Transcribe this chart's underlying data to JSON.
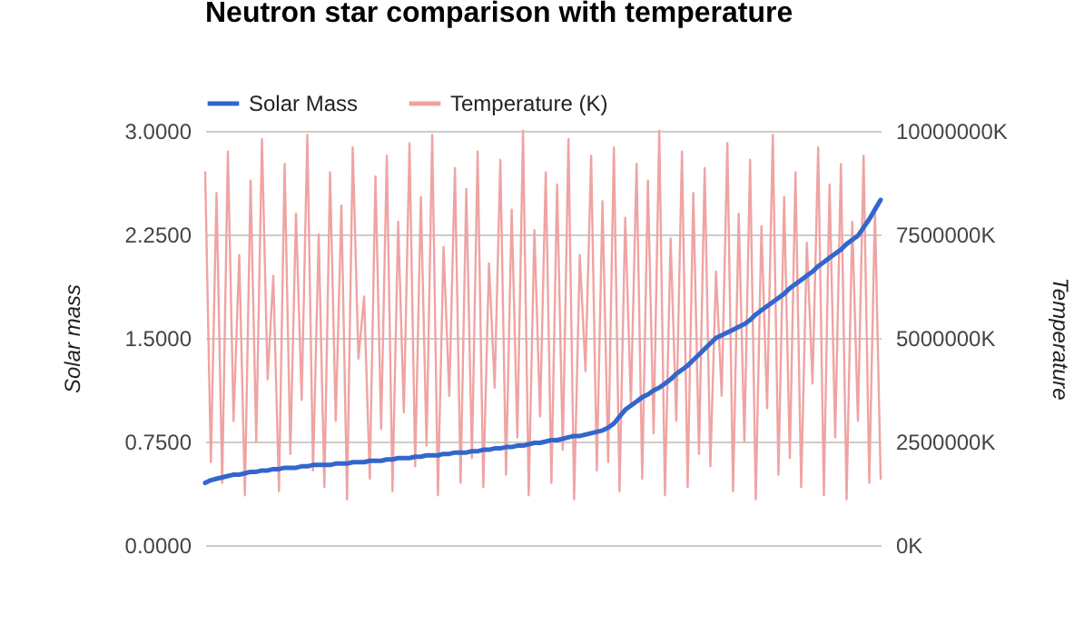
{
  "chart_data": {
    "type": "line",
    "title": "Neutron star comparison with temperature",
    "ylabel": "Solar mass",
    "y2label": "Temperature",
    "categories": [
      null,
      null,
      null,
      null,
      null,
      null,
      null,
      null,
      null,
      null,
      null,
      null,
      null,
      null,
      null,
      null,
      null,
      null,
      null,
      null,
      null,
      null,
      null,
      null,
      null,
      null,
      null,
      null,
      null,
      null,
      null,
      null,
      null,
      null,
      null,
      null,
      null,
      null,
      null,
      null,
      null,
      null,
      null,
      null,
      null,
      null,
      null,
      null,
      null,
      null,
      null,
      null,
      null,
      null,
      null,
      null,
      null,
      null,
      null,
      null,
      null,
      null,
      null,
      null,
      null,
      null,
      null,
      null,
      null,
      null,
      null,
      null,
      null,
      null,
      null,
      null,
      null,
      null,
      null,
      null,
      null,
      null,
      null,
      null,
      null,
      null,
      null,
      null,
      null,
      null,
      null,
      null,
      null,
      null,
      null,
      null,
      null,
      null,
      null,
      null,
      null,
      null,
      null,
      null,
      null,
      null,
      null,
      null,
      null,
      null,
      null,
      null,
      null,
      null,
      null,
      null,
      null,
      null,
      null,
      null
    ],
    "series": [
      {
        "name": "Solar Mass",
        "color": "#3366cc",
        "values": [
          0.45,
          0.47,
          0.48,
          0.49,
          0.5,
          0.51,
          0.51,
          0.52,
          0.53,
          0.53,
          0.54,
          0.54,
          0.55,
          0.55,
          0.56,
          0.56,
          0.56,
          0.57,
          0.57,
          0.58,
          0.58,
          0.58,
          0.58,
          0.59,
          0.59,
          0.59,
          0.6,
          0.6,
          0.6,
          0.61,
          0.61,
          0.61,
          0.62,
          0.62,
          0.63,
          0.63,
          0.63,
          0.64,
          0.64,
          0.65,
          0.65,
          0.65,
          0.66,
          0.66,
          0.67,
          0.67,
          0.67,
          0.68,
          0.68,
          0.69,
          0.69,
          0.7,
          0.7,
          0.71,
          0.71,
          0.72,
          0.72,
          0.73,
          0.74,
          0.74,
          0.75,
          0.76,
          0.76,
          0.77,
          0.78,
          0.79,
          0.79,
          0.8,
          0.81,
          0.82,
          0.83,
          0.85,
          0.88,
          0.93,
          0.98,
          1.01,
          1.04,
          1.07,
          1.09,
          1.12,
          1.14,
          1.17,
          1.2,
          1.24,
          1.27,
          1.3,
          1.34,
          1.38,
          1.42,
          1.46,
          1.5,
          1.52,
          1.54,
          1.56,
          1.58,
          1.6,
          1.63,
          1.67,
          1.7,
          1.73,
          1.76,
          1.79,
          1.82,
          1.86,
          1.89,
          1.92,
          1.95,
          1.98,
          2.02,
          2.05,
          2.08,
          2.11,
          2.14,
          2.18,
          2.21,
          2.24,
          2.3,
          2.36,
          2.43,
          2.5
        ]
      },
      {
        "name": "Temperature (K)",
        "color": "#f0a3a3",
        "axis": "y2",
        "values": [
          9000000,
          2000000,
          8500000,
          1500000,
          9500000,
          3000000,
          7000000,
          1200000,
          8800000,
          2500000,
          9800000,
          4000000,
          6500000,
          1300000,
          9200000,
          2200000,
          8000000,
          3500000,
          9900000,
          1800000,
          7500000,
          1400000,
          9000000,
          3000000,
          8200000,
          1100000,
          9600000,
          4500000,
          6000000,
          1600000,
          8900000,
          2800000,
          9400000,
          1300000,
          7800000,
          3200000,
          9700000,
          1900000,
          8400000,
          2400000,
          9900000,
          1200000,
          7200000,
          3600000,
          9100000,
          1500000,
          8600000,
          2100000,
          9500000,
          1400000,
          6800000,
          3800000,
          9300000,
          1700000,
          8100000,
          2600000,
          10000000,
          1200000,
          7600000,
          3100000,
          9000000,
          1500000,
          8700000,
          2300000,
          9800000,
          1100000,
          7000000,
          4200000,
          9400000,
          1800000,
          8300000,
          2000000,
          9600000,
          1300000,
          7900000,
          3400000,
          9200000,
          1600000,
          8800000,
          2700000,
          10000000,
          1200000,
          7400000,
          3000000,
          9500000,
          1400000,
          8500000,
          2200000,
          9100000,
          1900000,
          6600000,
          3600000,
          9700000,
          1300000,
          8000000,
          2500000,
          9300000,
          1100000,
          7700000,
          3300000,
          9900000,
          1700000,
          8400000,
          2100000,
          9000000,
          1400000,
          7300000,
          3900000,
          9600000,
          1200000,
          8700000,
          2600000,
          9200000,
          1100000,
          7800000,
          3000000,
          9400000,
          1500000,
          8100000,
          1600000
        ]
      }
    ],
    "ylim": [
      0,
      3
    ],
    "yticks": [
      {
        "value": 0,
        "label": "0.0000"
      },
      {
        "value": 0.75,
        "label": "0.7500"
      },
      {
        "value": 1.5,
        "label": "1.5000"
      },
      {
        "value": 2.25,
        "label": "2.2500"
      },
      {
        "value": 3,
        "label": "3.0000"
      }
    ],
    "y2lim": [
      0,
      10000000
    ],
    "y2ticks": [
      {
        "value": 0,
        "label": "0K"
      },
      {
        "value": 2500000,
        "label": "2500000K"
      },
      {
        "value": 5000000,
        "label": "5000000K"
      },
      {
        "value": 7500000,
        "label": "7500000K"
      },
      {
        "value": 10000000,
        "label": "10000000K"
      }
    ],
    "grid": "y",
    "legend": "top left"
  }
}
